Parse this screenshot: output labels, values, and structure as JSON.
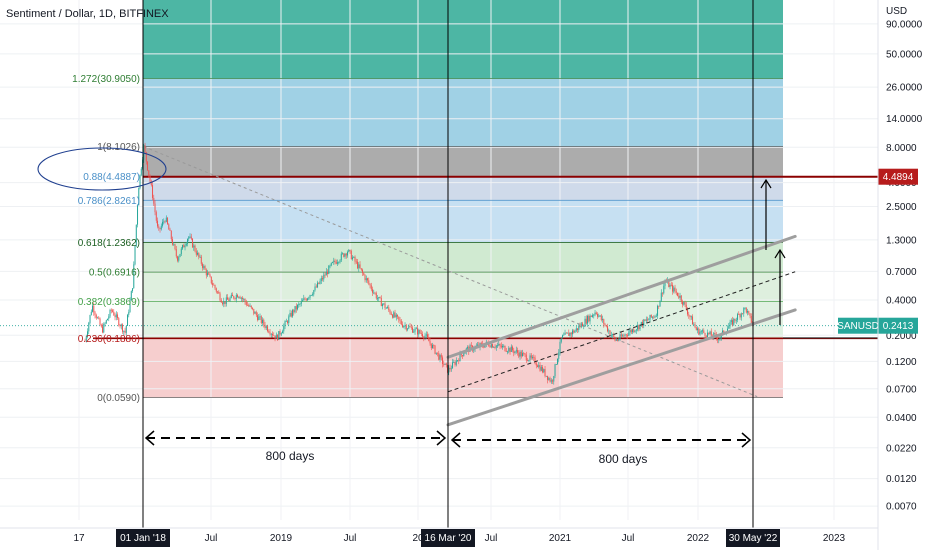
{
  "header": {
    "title": "Sentiment / Dollar, 1D, BITFINEX"
  },
  "colors": {
    "zone_1272": "#4db6a4",
    "zone_1": "#8fc9e0",
    "zone_088": "#9e9e9e",
    "zone_0786": "#c7d3e6",
    "zone_0618": "#bcdaf0",
    "zone_05": "#c8e6c9",
    "zone_0382": "#d8ecd8",
    "zone_0236": "#dbeedd",
    "zone_0": "#f5c5c5",
    "red_line": "#8b0000",
    "candle_up": "#26a69a",
    "candle_down": "#ef5350",
    "channel": "#9e9e9e",
    "price_tag": "#26a69a",
    "res_tag": "#b71c1c",
    "fib_1272": "#2e7d32",
    "fib_088": "#4a90c8",
    "fib_0618": "#1b5e20",
    "fib_05": "#2e7d32",
    "fib_0382": "#43a047",
    "fib_0236": "#b71c1c",
    "fib_0": "#555555",
    "fib_1": "#555555"
  },
  "chart_data": {
    "type": "candlestick",
    "title": "Sentiment / Dollar, 1D, BITFINEX",
    "symbol": "SANUSD",
    "exchange": "BITFINEX",
    "interval": "1D",
    "y_scale": "log",
    "y_axis_unit": "USD",
    "ylim": [
      0.0055,
      175
    ],
    "y_ticks": [
      "90.0000",
      "50.0000",
      "26.0000",
      "14.0000",
      "8.0000",
      "4.0000",
      "2.5000",
      "1.3000",
      "0.7000",
      "0.4000",
      "0.2000",
      "0.1200",
      "0.0700",
      "0.0400",
      "0.0220",
      "0.0120",
      "0.0070"
    ],
    "x_ticks": [
      "17",
      "Jul",
      "2019",
      "Jul",
      "20",
      "Jul",
      "2021",
      "Jul",
      "2022",
      "2023"
    ],
    "x_highlighted_ticks": [
      "01 Jan '18",
      "16 Mar '20",
      "30 May '22"
    ],
    "fib_levels": [
      {
        "label": "1.272(30.9050)",
        "ratio": 1.272,
        "price": 30.905
      },
      {
        "label": "1(8.1026)",
        "ratio": 1,
        "price": 8.1026
      },
      {
        "label": "0.88(4.4887)",
        "ratio": 0.88,
        "price": 4.4887
      },
      {
        "label": "0.786(2.8261)",
        "ratio": 0.786,
        "price": 2.8261
      },
      {
        "label": "0.618(1.2362)",
        "ratio": 0.618,
        "price": 1.2362
      },
      {
        "label": "0.5(0.6916)",
        "ratio": 0.5,
        "price": 0.6916
      },
      {
        "label": "0.382(0.3869)",
        "ratio": 0.382,
        "price": 0.3869
      },
      {
        "label": "0.236(0.1886)",
        "ratio": 0.236,
        "price": 0.1886
      },
      {
        "label": "0(0.0590)",
        "ratio": 0,
        "price": 0.059
      }
    ],
    "horizontal_lines": [
      {
        "price": 4.4894,
        "label": "4.4894"
      },
      {
        "price": 0.1886
      }
    ],
    "current_price": {
      "symbol": "SANUSD",
      "price": "0.2413"
    },
    "vertical_markers": [
      "01 Jan '18",
      "16 Mar '20",
      "30 May '22"
    ],
    "annotations": [
      {
        "text": "800 days",
        "from": "01 Jan '18",
        "to": "16 Mar '20"
      },
      {
        "text": "800 days",
        "from": "16 Mar '20",
        "to": "30 May '22"
      }
    ],
    "price_path": [
      {
        "date": "2017-08-01",
        "price": 0.18
      },
      {
        "date": "2017-08-20",
        "price": 0.36
      },
      {
        "date": "2017-09-15",
        "price": 0.22
      },
      {
        "date": "2017-10-10",
        "price": 0.33
      },
      {
        "date": "2017-11-15",
        "price": 0.21
      },
      {
        "date": "2017-12-05",
        "price": 0.55
      },
      {
        "date": "2017-12-20",
        "price": 3.6
      },
      {
        "date": "2018-01-03",
        "price": 8.1
      },
      {
        "date": "2018-01-25",
        "price": 3.3
      },
      {
        "date": "2018-02-10",
        "price": 1.5
      },
      {
        "date": "2018-03-01",
        "price": 2.0
      },
      {
        "date": "2018-04-01",
        "price": 0.9
      },
      {
        "date": "2018-05-01",
        "price": 1.4
      },
      {
        "date": "2018-06-15",
        "price": 0.7
      },
      {
        "date": "2018-08-01",
        "price": 0.38
      },
      {
        "date": "2018-09-10",
        "price": 0.45
      },
      {
        "date": "2018-11-20",
        "price": 0.24
      },
      {
        "date": "2018-12-20",
        "price": 0.19
      },
      {
        "date": "2019-02-01",
        "price": 0.32
      },
      {
        "date": "2019-04-01",
        "price": 0.5
      },
      {
        "date": "2019-05-15",
        "price": 0.8
      },
      {
        "date": "2019-06-25",
        "price": 1.05
      },
      {
        "date": "2019-07-20",
        "price": 0.8
      },
      {
        "date": "2019-09-15",
        "price": 0.4
      },
      {
        "date": "2019-11-15",
        "price": 0.25
      },
      {
        "date": "2020-01-15",
        "price": 0.2
      },
      {
        "date": "2020-03-16",
        "price": 0.1
      },
      {
        "date": "2020-05-01",
        "price": 0.15
      },
      {
        "date": "2020-07-01",
        "price": 0.17
      },
      {
        "date": "2020-09-01",
        "price": 0.15
      },
      {
        "date": "2020-11-01",
        "price": 0.12
      },
      {
        "date": "2020-12-15",
        "price": 0.08
      },
      {
        "date": "2021-01-10",
        "price": 0.19
      },
      {
        "date": "2021-02-15",
        "price": 0.22
      },
      {
        "date": "2021-04-10",
        "price": 0.32
      },
      {
        "date": "2021-06-01",
        "price": 0.18
      },
      {
        "date": "2021-08-01",
        "price": 0.24
      },
      {
        "date": "2021-09-15",
        "price": 0.3
      },
      {
        "date": "2021-10-10",
        "price": 0.58
      },
      {
        "date": "2021-11-20",
        "price": 0.42
      },
      {
        "date": "2022-01-01",
        "price": 0.22
      },
      {
        "date": "2022-03-01",
        "price": 0.19
      },
      {
        "date": "2022-04-15",
        "price": 0.28
      },
      {
        "date": "2022-05-10",
        "price": 0.34
      },
      {
        "date": "2022-05-30",
        "price": 0.24
      }
    ],
    "channel": {
      "upper": [
        {
          "date": "2020-03-16",
          "price": 0.13
        },
        {
          "date": "2022-06-10",
          "price": 1.1
        }
      ],
      "lower": [
        {
          "date": "2020-03-16",
          "price": 0.0345
        },
        {
          "date": "2022-06-10",
          "price": 0.26
        }
      ],
      "mid": [
        {
          "date": "2020-03-16",
          "price": 0.066
        },
        {
          "date": "2022-06-10",
          "price": 0.55
        }
      ]
    },
    "diagonal_dotted": [
      {
        "date": "2018-01-03",
        "price": 8.1
      },
      {
        "date": "2022-06-10",
        "price": 0.06
      }
    ]
  }
}
